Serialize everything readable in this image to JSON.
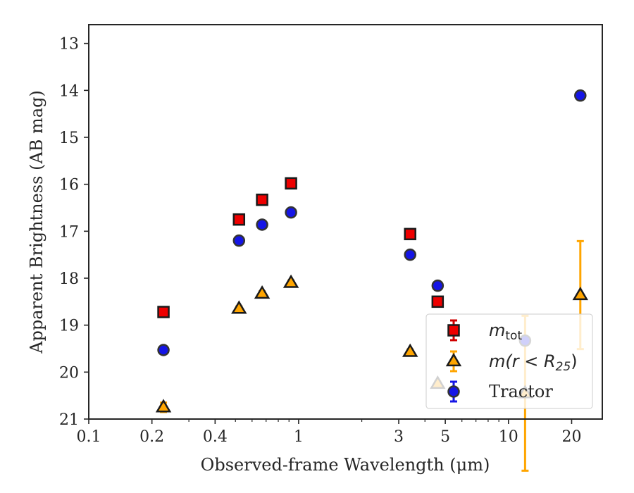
{
  "chart_data": {
    "type": "scatter",
    "xlabel": "Observed-frame Wavelength (μm)",
    "ylabel": "Apparent Brightness (AB mag)",
    "xscale": "log",
    "yinverted": true,
    "xlim": [
      0.1,
      28
    ],
    "ylim": [
      21,
      12.6
    ],
    "grid": false,
    "legend_loc": "lower-right",
    "xticks": [
      0.1,
      0.2,
      0.4,
      1,
      3,
      5,
      10,
      20
    ],
    "xtick_labels": [
      "0.1",
      "0.2",
      "0.4",
      "1",
      "3",
      "5",
      "10",
      "20"
    ],
    "yticks": [
      13,
      14,
      15,
      16,
      17,
      18,
      19,
      20,
      21
    ],
    "ytick_labels": [
      "13",
      "14",
      "15",
      "16",
      "17",
      "18",
      "19",
      "20",
      "21"
    ],
    "series": [
      {
        "name": "m_tot",
        "legend_main": "m",
        "legend_sub": "tot",
        "marker": "square",
        "color": "#ee0000",
        "edge": "#1a1a1a",
        "errcolor": "#d00000",
        "points": [
          {
            "x": 0.227,
            "y": 18.72,
            "err": 0.06
          },
          {
            "x": 0.52,
            "y": 16.75,
            "err": 0.05
          },
          {
            "x": 0.67,
            "y": 16.33,
            "err": 0.05
          },
          {
            "x": 0.92,
            "y": 15.98,
            "err": 0.05
          },
          {
            "x": 3.4,
            "y": 17.06,
            "err": 0.05
          },
          {
            "x": 4.6,
            "y": 18.5,
            "err": 0.05
          }
        ]
      },
      {
        "name": "m(r<R_25)",
        "legend_main": "m(r < R",
        "legend_sub": "25",
        "legend_end": ")",
        "marker": "triangle",
        "color": "#ffa500",
        "edge": "#1a1a1a",
        "errcolor": "#ffa500",
        "points": [
          {
            "x": 0.227,
            "y": 20.75,
            "err": 0.1
          },
          {
            "x": 0.52,
            "y": 18.65,
            "err": 0.05
          },
          {
            "x": 0.67,
            "y": 18.33,
            "err": 0.05
          },
          {
            "x": 0.92,
            "y": 18.1,
            "err": 0.05
          },
          {
            "x": 3.4,
            "y": 19.57,
            "err": 0.05
          },
          {
            "x": 4.6,
            "y": 20.25,
            "err": 0.05
          },
          {
            "x": 12.0,
            "y": 20.45,
            "err": 1.65
          },
          {
            "x": 22.0,
            "y": 18.36,
            "err": 1.15
          }
        ]
      },
      {
        "name": "Tractor",
        "marker": "circle",
        "color": "#1515e6",
        "edge": "#333333",
        "errcolor": "#1515e6",
        "points": [
          {
            "x": 0.227,
            "y": 19.53,
            "err": 0.08
          },
          {
            "x": 0.52,
            "y": 17.2,
            "err": 0.07
          },
          {
            "x": 0.67,
            "y": 16.86,
            "err": 0.07
          },
          {
            "x": 0.92,
            "y": 16.6,
            "err": 0.07
          },
          {
            "x": 3.4,
            "y": 17.5,
            "err": 0.07
          },
          {
            "x": 4.6,
            "y": 18.16,
            "err": 0.07
          },
          {
            "x": 12.0,
            "y": 19.33,
            "err": 0.08
          },
          {
            "x": 22.0,
            "y": 14.11,
            "err": 0.07
          }
        ]
      }
    ],
    "legend": [
      "m_tot",
      "m(r<R_25)",
      "Tractor"
    ]
  }
}
